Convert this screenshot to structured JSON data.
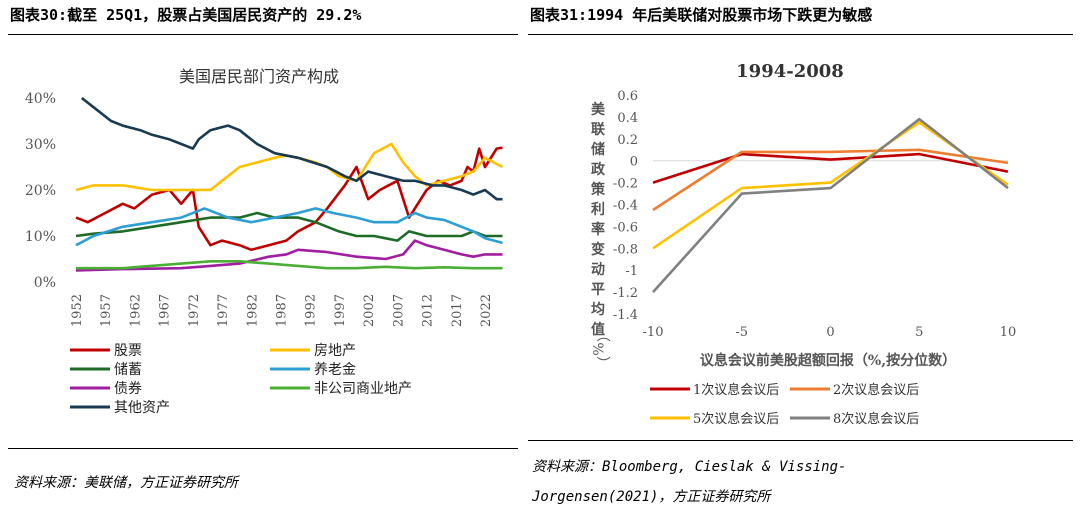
{
  "left": {
    "title": "图表30:截至 25Q1，股票占美国居民资产的 29.2%",
    "source": "资料来源：美联储，方正证券研究所"
  },
  "right": {
    "title": "图表31:1994 年后美联储对股票市场下跌更为敏感",
    "source_line1": "资料来源：Bloomberg, Cieslak & Vissing-",
    "source_line2": "Jorgensen(2021)，方正证券研究所"
  },
  "chart_data": [
    {
      "type": "line",
      "title": "美国居民部门资产构成",
      "xlabel": "",
      "ylabel": "",
      "x_ticks": [
        1952,
        1957,
        1962,
        1967,
        1972,
        1977,
        1982,
        1987,
        1992,
        1997,
        2002,
        2007,
        2012,
        2017,
        2022
      ],
      "xlim": [
        1952,
        2025.25
      ],
      "ylim": [
        0,
        0.4
      ],
      "y_ticks": [
        "0%",
        "10%",
        "20%",
        "30%",
        "40%"
      ],
      "y_tick_values": [
        0,
        0.1,
        0.2,
        0.3,
        0.4
      ],
      "grid": false,
      "legend_position": "bottom",
      "series": [
        {
          "name": "股票",
          "color": "#c00000",
          "x": [
            1952,
            1954,
            1957,
            1960,
            1962,
            1965,
            1968,
            1970,
            1972,
            1973,
            1975,
            1977,
            1980,
            1982,
            1985,
            1988,
            1990,
            1993,
            1995,
            1998,
            2000,
            2002,
            2004,
            2007,
            2009,
            2012,
            2014,
            2016,
            2018,
            2019,
            2020,
            2021,
            2022,
            2023,
            2024,
            2025
          ],
          "y": [
            0.14,
            0.13,
            0.15,
            0.17,
            0.16,
            0.19,
            0.2,
            0.17,
            0.2,
            0.12,
            0.08,
            0.09,
            0.08,
            0.07,
            0.08,
            0.09,
            0.11,
            0.13,
            0.16,
            0.21,
            0.25,
            0.18,
            0.2,
            0.22,
            0.14,
            0.2,
            0.22,
            0.21,
            0.22,
            0.25,
            0.24,
            0.29,
            0.25,
            0.27,
            0.29,
            0.292
          ]
        },
        {
          "name": "房地产",
          "color": "#ffc000",
          "x": [
            1952,
            1955,
            1960,
            1965,
            1970,
            1973,
            1975,
            1978,
            1980,
            1983,
            1986,
            1988,
            1990,
            1993,
            1995,
            1997,
            2000,
            2003,
            2006,
            2008,
            2010,
            2012,
            2015,
            2018,
            2020,
            2022,
            2025
          ],
          "y": [
            0.2,
            0.21,
            0.21,
            0.2,
            0.2,
            0.2,
            0.2,
            0.23,
            0.25,
            0.26,
            0.27,
            0.275,
            0.27,
            0.26,
            0.25,
            0.23,
            0.22,
            0.28,
            0.3,
            0.26,
            0.23,
            0.21,
            0.22,
            0.23,
            0.24,
            0.27,
            0.25
          ]
        },
        {
          "name": "储蓄",
          "color": "#1e6b28",
          "x": [
            1952,
            1955,
            1960,
            1965,
            1970,
            1975,
            1980,
            1983,
            1986,
            1990,
            1993,
            1997,
            2000,
            2003,
            2007,
            2009,
            2012,
            2015,
            2018,
            2020,
            2022,
            2025
          ],
          "y": [
            0.1,
            0.105,
            0.11,
            0.12,
            0.13,
            0.14,
            0.14,
            0.15,
            0.14,
            0.14,
            0.13,
            0.11,
            0.1,
            0.1,
            0.09,
            0.11,
            0.1,
            0.1,
            0.1,
            0.11,
            0.1,
            0.1
          ]
        },
        {
          "name": "养老金",
          "color": "#2e9fd4",
          "x": [
            1952,
            1955,
            1960,
            1965,
            1970,
            1974,
            1978,
            1982,
            1986,
            1990,
            1993,
            1996,
            2000,
            2003,
            2007,
            2010,
            2012,
            2015,
            2018,
            2020,
            2022,
            2025
          ],
          "y": [
            0.08,
            0.1,
            0.12,
            0.13,
            0.14,
            0.16,
            0.14,
            0.13,
            0.14,
            0.15,
            0.16,
            0.15,
            0.14,
            0.13,
            0.13,
            0.15,
            0.14,
            0.135,
            0.12,
            0.11,
            0.095,
            0.085
          ]
        },
        {
          "name": "债券",
          "color": "#a11ea1",
          "x": [
            1952,
            1960,
            1970,
            1975,
            1980,
            1985,
            1988,
            1990,
            1995,
            2000,
            2005,
            2008,
            2010,
            2012,
            2015,
            2018,
            2020,
            2022,
            2025
          ],
          "y": [
            0.025,
            0.028,
            0.03,
            0.035,
            0.04,
            0.055,
            0.06,
            0.07,
            0.065,
            0.055,
            0.05,
            0.06,
            0.09,
            0.08,
            0.07,
            0.06,
            0.055,
            0.06,
            0.06
          ]
        },
        {
          "name": "非公司商业地产",
          "color": "#4caf35",
          "x": [
            1952,
            1960,
            1970,
            1975,
            1980,
            1985,
            1990,
            1995,
            2000,
            2005,
            2010,
            2015,
            2020,
            2025
          ],
          "y": [
            0.03,
            0.03,
            0.04,
            0.045,
            0.045,
            0.04,
            0.035,
            0.03,
            0.03,
            0.033,
            0.03,
            0.032,
            0.03,
            0.03
          ]
        },
        {
          "name": "其他资产",
          "color": "#1a3a52",
          "x": [
            1953,
            1955,
            1958,
            1960,
            1963,
            1965,
            1968,
            1970,
            1972,
            1973,
            1975,
            1978,
            1980,
            1983,
            1986,
            1990,
            1995,
            1998,
            2000,
            2002,
            2005,
            2008,
            2010,
            2013,
            2015,
            2018,
            2020,
            2022,
            2024,
            2025
          ],
          "y": [
            0.4,
            0.38,
            0.35,
            0.34,
            0.33,
            0.32,
            0.31,
            0.3,
            0.29,
            0.31,
            0.33,
            0.34,
            0.33,
            0.3,
            0.28,
            0.27,
            0.25,
            0.23,
            0.22,
            0.24,
            0.23,
            0.22,
            0.22,
            0.21,
            0.21,
            0.2,
            0.19,
            0.2,
            0.18,
            0.18
          ]
        }
      ]
    },
    {
      "type": "line",
      "title": "1994-2008",
      "xlabel": "议息会议前美股超额回报（%,按分位数）",
      "ylabel": "美联储政策利率变动平均值（%）",
      "xlim": [
        -10,
        10
      ],
      "ylim": [
        -1.4,
        0.6
      ],
      "x_ticks": [
        "-10",
        "-5",
        "0",
        "5",
        "10"
      ],
      "x_tick_values": [
        -10,
        -5,
        0,
        5,
        10
      ],
      "y_ticks": [
        "0.6",
        "0.4",
        "0.2",
        "0",
        "-0.2",
        "-0.4",
        "-0.6",
        "-0.8",
        "-1",
        "-1.2",
        "-1.4"
      ],
      "y_tick_values": [
        0.6,
        0.4,
        0.2,
        0,
        -0.2,
        -0.4,
        -0.6,
        -0.8,
        -1,
        -1.2,
        -1.4
      ],
      "grid": false,
      "legend_position": "bottom",
      "x": [
        -10,
        -5,
        0,
        5,
        10
      ],
      "series": [
        {
          "name": "1次议息会议后",
          "color": "#c00000",
          "values": [
            -0.2,
            0.06,
            0.01,
            0.06,
            -0.1
          ]
        },
        {
          "name": "2次议息会议后",
          "color": "#ed7d31",
          "values": [
            -0.45,
            0.08,
            0.08,
            0.1,
            -0.02
          ]
        },
        {
          "name": "5次议息会议后",
          "color": "#ffc000",
          "values": [
            -0.8,
            -0.25,
            -0.2,
            0.35,
            -0.22
          ]
        },
        {
          "name": "8次议息会议后",
          "color": "#808080",
          "values": [
            -1.2,
            -0.3,
            -0.25,
            0.38,
            -0.25
          ]
        }
      ]
    }
  ]
}
